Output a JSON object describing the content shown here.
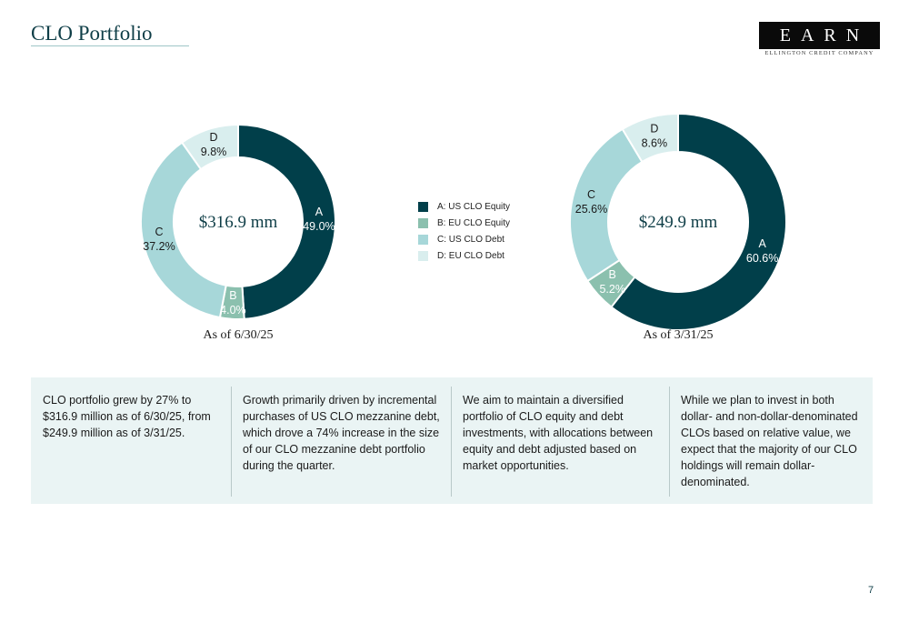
{
  "header": {
    "title": "CLO Portfolio",
    "logo_word": "EARN",
    "logo_subtitle": "ELLINGTON CREDIT COMPANY"
  },
  "colors": {
    "A": "#013f4a",
    "B": "#8bc0ae",
    "C": "#a7d7d9",
    "D": "#d9eeee",
    "title": "#0f3e47",
    "panel": "#eaf4f4"
  },
  "legend": [
    {
      "key": "A",
      "label": "A: US CLO Equity"
    },
    {
      "key": "B",
      "label": "B: EU CLO Equity"
    },
    {
      "key": "C",
      "label": "C: US CLO Debt"
    },
    {
      "key": "D",
      "label": "D: EU CLO Debt"
    }
  ],
  "chart_data": [
    {
      "type": "pie",
      "variant": "donut",
      "center_label": "$316.9 mm",
      "caption": "As of 6/30/25",
      "categories": [
        "A",
        "B",
        "C",
        "D"
      ],
      "values": [
        49.0,
        4.0,
        37.2,
        9.8
      ],
      "value_labels": [
        "49.0%",
        "4.0%",
        "37.2%",
        "9.8%"
      ]
    },
    {
      "type": "pie",
      "variant": "donut",
      "center_label": "$249.9 mm",
      "caption": "As of 3/31/25",
      "categories": [
        "A",
        "B",
        "C",
        "D"
      ],
      "values": [
        60.6,
        5.2,
        25.6,
        8.6
      ],
      "value_labels": [
        "60.6%",
        "5.2%",
        "25.6%",
        "8.6%"
      ]
    }
  ],
  "info_columns": [
    "CLO portfolio grew by 27% to $316.9 million as of 6/30/25, from $249.9 million as of 3/31/25.",
    "Growth primarily driven by incremental purchases of US CLO mezzanine debt, which drove a 74% increase in the size of our CLO mezzanine debt portfolio during the quarter.",
    "We aim to maintain a diversified portfolio of CLO equity and debt investments, with allocations between equity and debt adjusted based on market opportunities.",
    "While we plan to invest in both dollar- and non-dollar-denominated CLOs based on relative value, we expect that the majority of our CLO holdings will remain dollar-denominated."
  ],
  "page_number": "7"
}
